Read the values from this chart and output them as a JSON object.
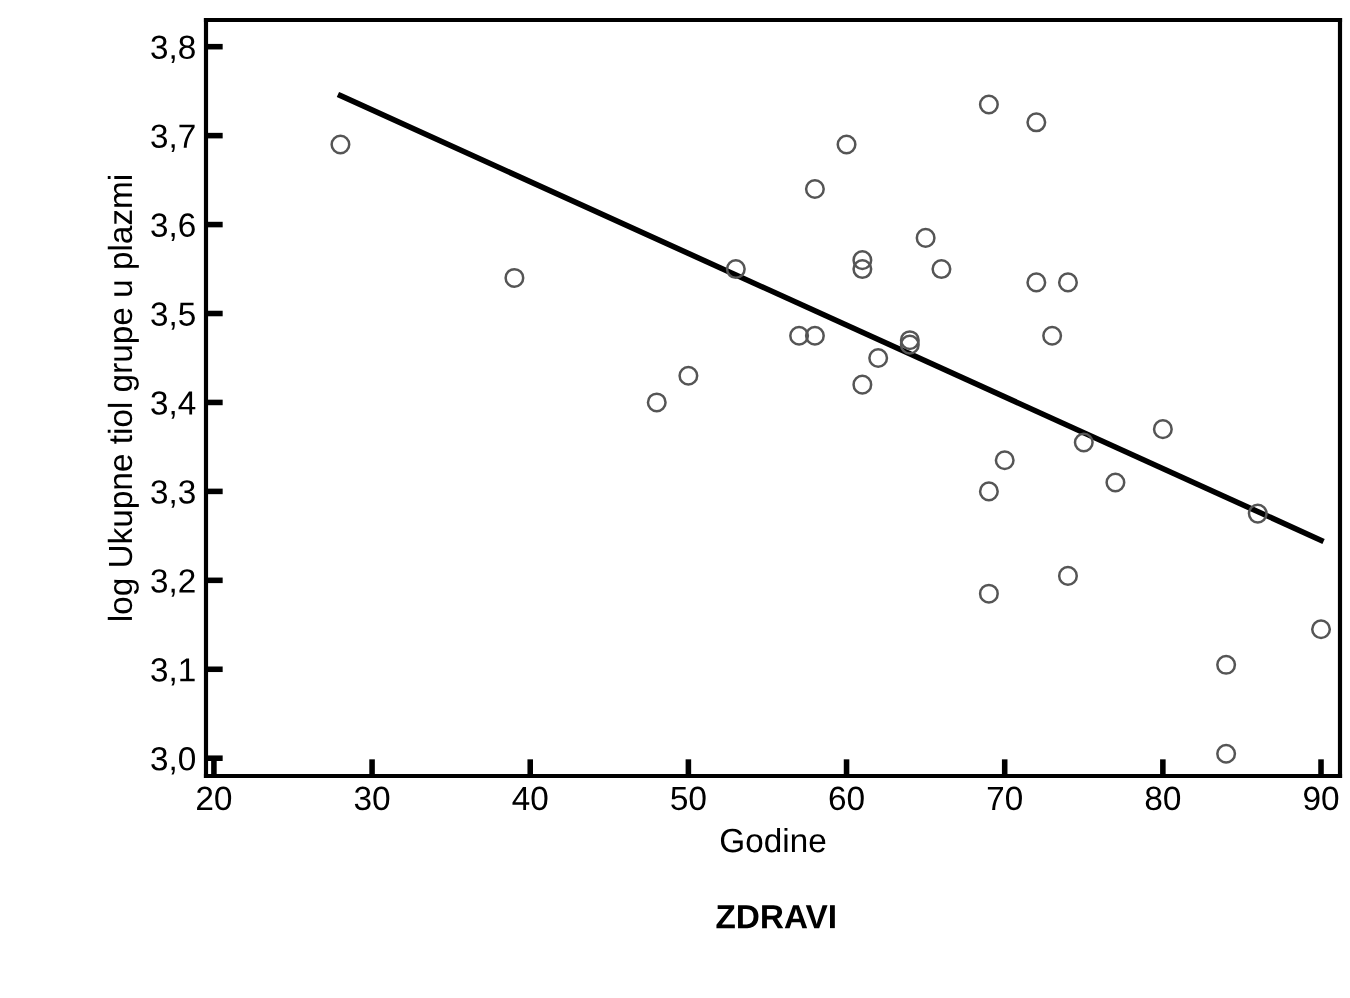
{
  "chart_data": {
    "type": "scatter",
    "xlabel": "Godine",
    "ylabel": "log Ukupne tiol grupe u plazmi",
    "annotations": [
      "ZDRAVI"
    ],
    "xlim": [
      19.5,
      91.2
    ],
    "ylim": [
      2.98,
      3.83
    ],
    "xticks": [
      20,
      30,
      40,
      50,
      60,
      70,
      80,
      90
    ],
    "yticks": [
      {
        "value": 3.0,
        "label": "3,0"
      },
      {
        "value": 3.1,
        "label": "3,1"
      },
      {
        "value": 3.2,
        "label": "3,2"
      },
      {
        "value": 3.3,
        "label": "3,3"
      },
      {
        "value": 3.4,
        "label": "3,4"
      },
      {
        "value": 3.5,
        "label": "3,5"
      },
      {
        "value": 3.6,
        "label": "3,6"
      },
      {
        "value": 3.7,
        "label": "3,7"
      },
      {
        "value": 3.8,
        "label": "3,8"
      }
    ],
    "grid": false,
    "series": [
      {
        "marker": "circle",
        "color": "#555555",
        "x": [
          28,
          39,
          48,
          50,
          53,
          57,
          58,
          58,
          60,
          61,
          61,
          61,
          62,
          64,
          64,
          65,
          66,
          69,
          69,
          69,
          70,
          72,
          72,
          73,
          74,
          74,
          75,
          77,
          80,
          84,
          84,
          86,
          90
        ],
        "values": [
          3.69,
          3.54,
          3.4,
          3.43,
          3.55,
          3.475,
          3.475,
          3.64,
          3.69,
          3.56,
          3.55,
          3.42,
          3.45,
          3.47,
          3.465,
          3.585,
          3.55,
          3.735,
          3.3,
          3.185,
          3.335,
          3.715,
          3.535,
          3.475,
          3.535,
          3.205,
          3.355,
          3.31,
          3.37,
          3.105,
          3.005,
          3.275,
          3.145
        ]
      },
      {
        "type": "line",
        "color": "#000000",
        "x": [
          28,
          90
        ],
        "values": [
          3.745,
          3.245
        ]
      }
    ]
  }
}
